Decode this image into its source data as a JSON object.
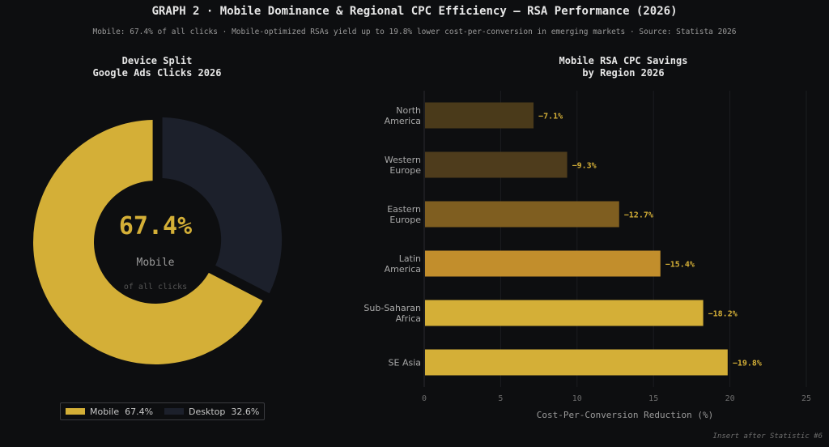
{
  "header": {
    "title": "GRAPH 2  ·  Mobile Dominance & Regional CPC Efficiency — RSA Performance (2026)",
    "subtitle": "Mobile: 67.4% of all clicks  ·  Mobile-optimized RSAs yield up to 19.8% lower cost-per-conversion in emerging markets  ·  Source: Statista 2026"
  },
  "chart_data": [
    {
      "type": "pie",
      "title": "Device Split\nGoogle Ads Clicks 2026",
      "slices": [
        {
          "label": "Mobile",
          "value": 67.4,
          "color": "#d4af37"
        },
        {
          "label": "Desktop",
          "value": 32.6,
          "color": "#1c202b"
        }
      ],
      "center_value": "67.4%",
      "center_label": "Mobile",
      "center_sublabel": "of all clicks",
      "legend": {
        "placement": "bottom-left",
        "entries": [
          "Mobile  67.4%",
          "Desktop  32.6%"
        ]
      }
    },
    {
      "type": "bar",
      "orientation": "horizontal",
      "title": "Mobile RSA CPC Savings\nby Region 2026",
      "categories": [
        "North\nAmerica",
        "Western\nEurope",
        "Eastern\nEurope",
        "Latin\nAmerica",
        "Sub-Saharan\nAfrica",
        "SE Asia"
      ],
      "values": [
        7.1,
        9.3,
        12.7,
        15.4,
        18.2,
        19.8
      ],
      "data_labels": [
        "−7.1%",
        "−9.3%",
        "−12.7%",
        "−15.4%",
        "−18.2%",
        "−19.8%"
      ],
      "colors": [
        "#4a3a1a",
        "#4e3c1c",
        "#7f5e20",
        "#c28e2c",
        "#d4af37",
        "#d4af37"
      ],
      "xlabel": "Cost-Per-Conversion Reduction (%)",
      "xlim": [
        0,
        25
      ],
      "xticks": [
        0,
        5,
        10,
        15,
        20,
        25
      ],
      "grid": true
    }
  ],
  "footnote": "Insert after Statistic #6"
}
